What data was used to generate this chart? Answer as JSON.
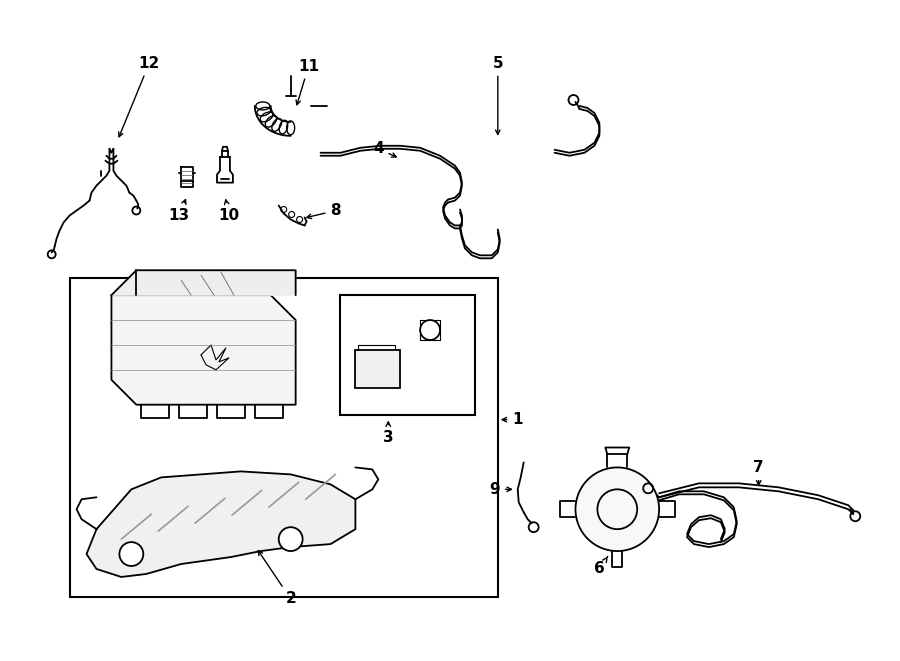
{
  "background_color": "#ffffff",
  "line_color": "#000000",
  "figure_width": 9.0,
  "figure_height": 6.61,
  "dpi": 100,
  "lw": 1.3
}
